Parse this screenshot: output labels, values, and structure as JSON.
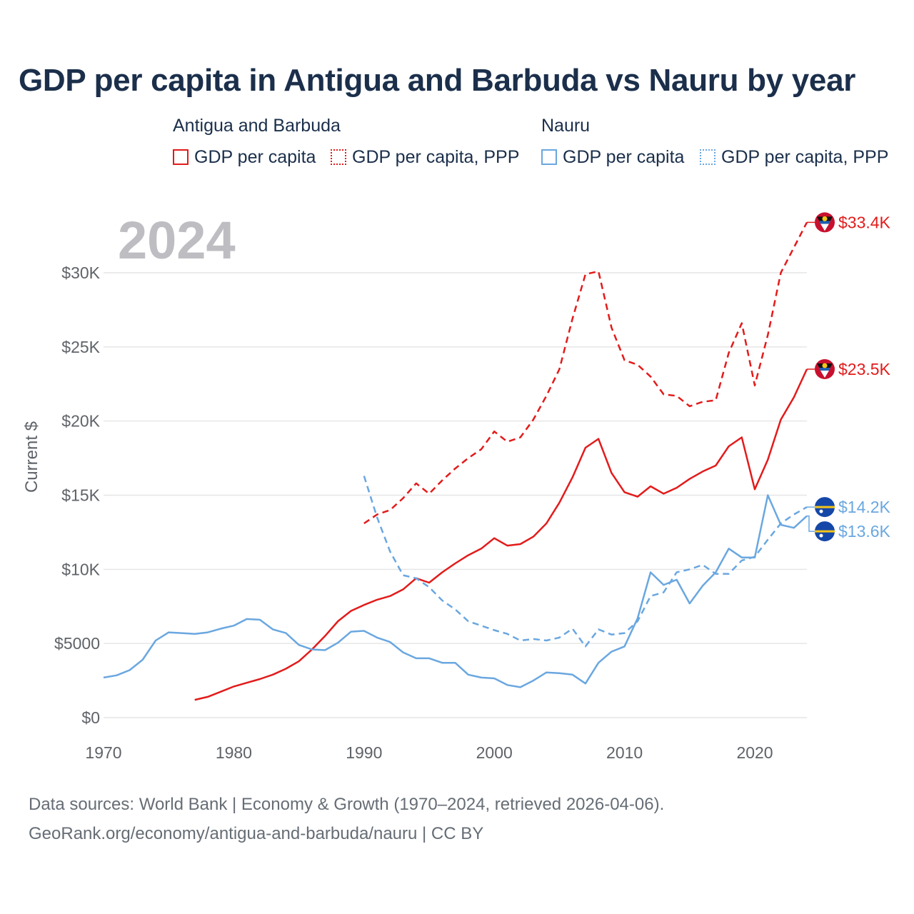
{
  "title": "GDP per capita in Antigua and Barbuda vs Nauru by year",
  "legend": {
    "groups": [
      {
        "name": "Antigua and Barbuda",
        "items": [
          {
            "label": "GDP per capita",
            "style": "solid",
            "color": "#e31b1b"
          },
          {
            "label": "GDP per capita, PPP",
            "style": "dotted",
            "color": "#e31b1b"
          }
        ]
      },
      {
        "name": "Nauru",
        "items": [
          {
            "label": "GDP per capita",
            "style": "solid",
            "color": "#6aa7e0"
          },
          {
            "label": "GDP per capita, PPP",
            "style": "dotted",
            "color": "#6aa7e0"
          }
        ]
      }
    ]
  },
  "footer": {
    "line1": "Data sources: World Bank | Economy & Growth (1970–2024, retrieved 2026-04-06).",
    "line2": "GeoRank.org/economy/antigua-and-barbuda/nauru | CC BY"
  },
  "chart_data": {
    "type": "line",
    "year_label": "2024",
    "ylabel": "Current $",
    "xlim": [
      1970,
      2024
    ],
    "ylim": [
      0,
      30000
    ],
    "x_ticks": [
      1970,
      1980,
      1990,
      2000,
      2010,
      2020
    ],
    "x_tick_labels": [
      "1970",
      "1980",
      "1990",
      "2000",
      "2010",
      "2020"
    ],
    "y_ticks": [
      0,
      5000,
      10000,
      15000,
      20000,
      25000,
      30000
    ],
    "y_tick_labels": [
      "$0",
      "$5000",
      "$10K",
      "$15K",
      "$20K",
      "$25K",
      "$30K"
    ],
    "grid": true,
    "series": [
      {
        "name": "Antigua and Barbuda – GDP per capita",
        "country": "Antigua and Barbuda",
        "color": "#e31b1b",
        "dash": "solid",
        "end_label": "$23.5K",
        "x": [
          1977,
          1978,
          1979,
          1980,
          1981,
          1982,
          1983,
          1984,
          1985,
          1986,
          1987,
          1988,
          1989,
          1990,
          1991,
          1992,
          1993,
          1994,
          1995,
          1996,
          1997,
          1998,
          1999,
          2000,
          2001,
          2002,
          2003,
          2004,
          2005,
          2006,
          2007,
          2008,
          2009,
          2010,
          2011,
          2012,
          2013,
          2014,
          2015,
          2016,
          2017,
          2018,
          2019,
          2020,
          2021,
          2022,
          2023,
          2024
        ],
        "y": [
          1200,
          1400,
          1750,
          2100,
          2350,
          2600,
          2900,
          3300,
          3800,
          4600,
          5500,
          6500,
          7200,
          7600,
          7950,
          8200,
          8650,
          9400,
          9100,
          9800,
          10400,
          10950,
          11400,
          12100,
          11600,
          11700,
          12200,
          13100,
          14500,
          16200,
          18200,
          18800,
          16500,
          15200,
          14900,
          15600,
          15100,
          15500,
          16100,
          16600,
          17000,
          18300,
          18900,
          15400,
          17400,
          20100,
          21600,
          23500
        ]
      },
      {
        "name": "Antigua and Barbuda – GDP per capita, PPP",
        "country": "Antigua and Barbuda",
        "color": "#e31b1b",
        "dash": "dashed",
        "end_label": "$33.4K",
        "x": [
          1990,
          1991,
          1992,
          1993,
          1994,
          1995,
          1996,
          1997,
          1998,
          1999,
          2000,
          2001,
          2002,
          2003,
          2004,
          2005,
          2006,
          2007,
          2008,
          2009,
          2010,
          2011,
          2012,
          2013,
          2014,
          2015,
          2016,
          2017,
          2018,
          2019,
          2020,
          2021,
          2022,
          2023,
          2024
        ],
        "y": [
          13100,
          13700,
          14000,
          14800,
          15800,
          15100,
          16000,
          16800,
          17500,
          18100,
          19300,
          18600,
          18900,
          20100,
          21700,
          23500,
          26900,
          29900,
          30100,
          26300,
          24100,
          23800,
          23000,
          21800,
          21700,
          21000,
          21300,
          21400,
          24600,
          26600,
          22400,
          25800,
          30000,
          31700,
          33400
        ]
      },
      {
        "name": "Nauru – GDP per capita",
        "country": "Nauru",
        "color": "#6aa7e0",
        "dash": "solid",
        "end_label": "$13.6K",
        "x": [
          1970,
          1971,
          1972,
          1973,
          1974,
          1975,
          1976,
          1977,
          1978,
          1979,
          1980,
          1981,
          1982,
          1983,
          1984,
          1985,
          1986,
          1987,
          1988,
          1989,
          1990,
          1991,
          1992,
          1993,
          1994,
          1995,
          1996,
          1997,
          1998,
          1999,
          2000,
          2001,
          2002,
          2003,
          2004,
          2005,
          2006,
          2007,
          2008,
          2009,
          2010,
          2011,
          2012,
          2013,
          2014,
          2015,
          2016,
          2017,
          2018,
          2019,
          2020,
          2021,
          2022,
          2023,
          2024
        ],
        "y": [
          2700,
          2850,
          3200,
          3900,
          5200,
          5750,
          5700,
          5650,
          5750,
          6000,
          6200,
          6650,
          6600,
          5950,
          5700,
          4900,
          4600,
          4550,
          5050,
          5800,
          5850,
          5400,
          5100,
          4400,
          4000,
          4000,
          3700,
          3700,
          2900,
          2700,
          2650,
          2200,
          2050,
          2500,
          3050,
          3000,
          2900,
          2300,
          3700,
          4450,
          4800,
          6700,
          9800,
          8950,
          9300,
          7700,
          8900,
          9800,
          11400,
          10800,
          10800,
          15000,
          13000,
          12800,
          13600
        ]
      },
      {
        "name": "Nauru – GDP per capita, PPP",
        "country": "Nauru",
        "color": "#6aa7e0",
        "dash": "dashed",
        "end_label": "$14.2K",
        "x": [
          1990,
          1991,
          1992,
          1993,
          1994,
          1995,
          1996,
          1997,
          1998,
          1999,
          2000,
          2001,
          2002,
          2003,
          2004,
          2005,
          2006,
          2007,
          2008,
          2009,
          2010,
          2011,
          2012,
          2013,
          2014,
          2015,
          2016,
          2017,
          2018,
          2019,
          2020,
          2021,
          2022,
          2023,
          2024
        ],
        "y": [
          16300,
          13500,
          11200,
          9600,
          9400,
          8800,
          7900,
          7300,
          6500,
          6200,
          5900,
          5650,
          5200,
          5300,
          5200,
          5400,
          6000,
          4800,
          5950,
          5600,
          5700,
          6500,
          8200,
          8450,
          9800,
          10000,
          10300,
          9700,
          9700,
          10600,
          10850,
          12000,
          13100,
          13700,
          14200
        ]
      }
    ]
  }
}
